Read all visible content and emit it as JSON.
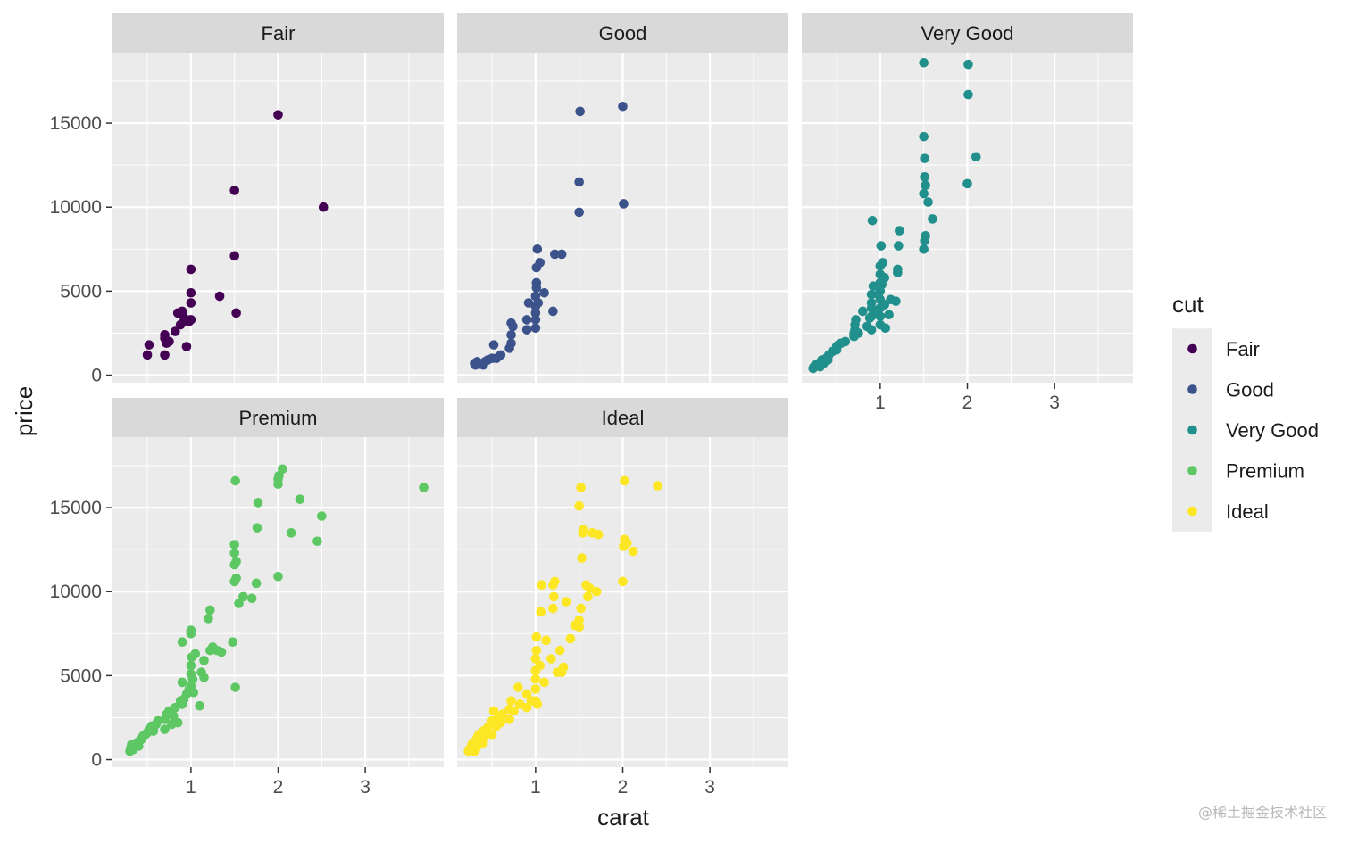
{
  "chart_data": {
    "type": "scatter",
    "xlabel": "carat",
    "ylabel": "price",
    "xlim": [
      0.1,
      3.9
    ],
    "ylim": [
      -450,
      19200
    ],
    "x_ticks": [
      1,
      2,
      3
    ],
    "y_ticks": [
      0,
      5000,
      10000,
      15000
    ],
    "grid": true,
    "legend": {
      "title": "cut",
      "position": "right"
    },
    "colors": {
      "Fair": "#440154",
      "Good": "#3B528B",
      "Very Good": "#21908C",
      "Premium": "#5DC863",
      "Ideal": "#FDE725",
      "panel_bg": "#EBEBEB",
      "strip_bg": "#D9D9D9"
    },
    "series": [
      {
        "name": "Fair",
        "points": [
          [
            0.5,
            1200
          ],
          [
            0.52,
            1800
          ],
          [
            0.7,
            1200
          ],
          [
            0.7,
            2200
          ],
          [
            0.7,
            2400
          ],
          [
            0.72,
            1900
          ],
          [
            0.75,
            2000
          ],
          [
            0.82,
            2600
          ],
          [
            0.85,
            3700
          ],
          [
            0.88,
            3000
          ],
          [
            0.9,
            3600
          ],
          [
            0.9,
            3800
          ],
          [
            0.92,
            3200
          ],
          [
            0.95,
            1700
          ],
          [
            0.95,
            3300
          ],
          [
            0.98,
            3200
          ],
          [
            1.0,
            3300
          ],
          [
            1.0,
            4300
          ],
          [
            1.0,
            4900
          ],
          [
            1.0,
            6300
          ],
          [
            1.33,
            4700
          ],
          [
            1.5,
            7100
          ],
          [
            1.5,
            11000
          ],
          [
            1.52,
            3700
          ],
          [
            2.0,
            15500
          ],
          [
            2.52,
            10000
          ]
        ]
      },
      {
        "name": "Good",
        "points": [
          [
            0.3,
            700
          ],
          [
            0.31,
            600
          ],
          [
            0.33,
            800
          ],
          [
            0.36,
            650
          ],
          [
            0.4,
            600
          ],
          [
            0.42,
            800
          ],
          [
            0.45,
            900
          ],
          [
            0.5,
            1000
          ],
          [
            0.52,
            1800
          ],
          [
            0.55,
            1000
          ],
          [
            0.6,
            1200
          ],
          [
            0.7,
            1600
          ],
          [
            0.72,
            1900
          ],
          [
            0.72,
            2400
          ],
          [
            0.72,
            3100
          ],
          [
            0.74,
            2900
          ],
          [
            0.9,
            2700
          ],
          [
            0.9,
            3300
          ],
          [
            0.92,
            4300
          ],
          [
            1.0,
            2800
          ],
          [
            1.0,
            3300
          ],
          [
            1.0,
            3700
          ],
          [
            1.0,
            4100
          ],
          [
            1.0,
            4700
          ],
          [
            1.01,
            5200
          ],
          [
            1.01,
            5500
          ],
          [
            1.01,
            6400
          ],
          [
            1.02,
            7500
          ],
          [
            1.03,
            4300
          ],
          [
            1.05,
            6700
          ],
          [
            1.1,
            4900
          ],
          [
            1.2,
            3800
          ],
          [
            1.22,
            7200
          ],
          [
            1.3,
            7200
          ],
          [
            1.5,
            9700
          ],
          [
            1.5,
            11500
          ],
          [
            1.51,
            15700
          ],
          [
            2.0,
            16000
          ],
          [
            2.01,
            10200
          ]
        ]
      },
      {
        "name": "Very Good",
        "points": [
          [
            0.23,
            400
          ],
          [
            0.24,
            500
          ],
          [
            0.26,
            600
          ],
          [
            0.28,
            650
          ],
          [
            0.3,
            700
          ],
          [
            0.31,
            500
          ],
          [
            0.32,
            800
          ],
          [
            0.33,
            900
          ],
          [
            0.35,
            700
          ],
          [
            0.38,
            1000
          ],
          [
            0.4,
            900
          ],
          [
            0.4,
            1100
          ],
          [
            0.41,
            1200
          ],
          [
            0.45,
            1400
          ],
          [
            0.5,
            1500
          ],
          [
            0.5,
            1700
          ],
          [
            0.52,
            1800
          ],
          [
            0.55,
            1900
          ],
          [
            0.6,
            2000
          ],
          [
            0.7,
            2300
          ],
          [
            0.7,
            2500
          ],
          [
            0.71,
            2700
          ],
          [
            0.71,
            3000
          ],
          [
            0.72,
            3300
          ],
          [
            0.75,
            2500
          ],
          [
            0.8,
            3800
          ],
          [
            0.85,
            2900
          ],
          [
            0.88,
            3400
          ],
          [
            0.9,
            2700
          ],
          [
            0.9,
            3500
          ],
          [
            0.9,
            4000
          ],
          [
            0.9,
            4300
          ],
          [
            0.9,
            4800
          ],
          [
            0.91,
            9200
          ],
          [
            0.92,
            5300
          ],
          [
            0.95,
            3700
          ],
          [
            0.98,
            4800
          ],
          [
            1.0,
            3000
          ],
          [
            1.0,
            3500
          ],
          [
            1.0,
            4000
          ],
          [
            1.0,
            4500
          ],
          [
            1.0,
            5000
          ],
          [
            1.0,
            5500
          ],
          [
            1.0,
            6000
          ],
          [
            1.0,
            6500
          ],
          [
            1.01,
            7700
          ],
          [
            1.02,
            5400
          ],
          [
            1.03,
            6700
          ],
          [
            1.05,
            4200
          ],
          [
            1.05,
            5800
          ],
          [
            1.06,
            2800
          ],
          [
            1.1,
            3600
          ],
          [
            1.12,
            4500
          ],
          [
            1.18,
            4400
          ],
          [
            1.2,
            6100
          ],
          [
            1.2,
            6300
          ],
          [
            1.21,
            7700
          ],
          [
            1.22,
            8600
          ],
          [
            1.5,
            7500
          ],
          [
            1.51,
            8000
          ],
          [
            1.52,
            8300
          ],
          [
            1.5,
            10800
          ],
          [
            1.52,
            11300
          ],
          [
            1.51,
            11800
          ],
          [
            1.51,
            12900
          ],
          [
            1.5,
            14200
          ],
          [
            1.55,
            10300
          ],
          [
            1.6,
            9300
          ],
          [
            1.5,
            18600
          ],
          [
            2.0,
            11400
          ],
          [
            2.01,
            16700
          ],
          [
            2.01,
            18500
          ],
          [
            2.1,
            13000
          ]
        ]
      },
      {
        "name": "Premium",
        "points": [
          [
            0.3,
            500
          ],
          [
            0.31,
            700
          ],
          [
            0.32,
            900
          ],
          [
            0.34,
            600
          ],
          [
            0.36,
            800
          ],
          [
            0.38,
            1000
          ],
          [
            0.4,
            800
          ],
          [
            0.41,
            1100
          ],
          [
            0.43,
            1200
          ],
          [
            0.45,
            1400
          ],
          [
            0.48,
            1500
          ],
          [
            0.5,
            1600
          ],
          [
            0.52,
            1800
          ],
          [
            0.55,
            2000
          ],
          [
            0.57,
            1700
          ],
          [
            0.6,
            2100
          ],
          [
            0.62,
            2300
          ],
          [
            0.7,
            1800
          ],
          [
            0.7,
            2400
          ],
          [
            0.72,
            2700
          ],
          [
            0.75,
            2900
          ],
          [
            0.78,
            2100
          ],
          [
            0.8,
            2600
          ],
          [
            0.82,
            3100
          ],
          [
            0.85,
            2200
          ],
          [
            0.88,
            3500
          ],
          [
            0.9,
            3300
          ],
          [
            0.9,
            4600
          ],
          [
            0.9,
            7000
          ],
          [
            0.92,
            3600
          ],
          [
            0.95,
            3900
          ],
          [
            0.98,
            4200
          ],
          [
            1.0,
            4400
          ],
          [
            1.0,
            5100
          ],
          [
            1.0,
            5600
          ],
          [
            1.0,
            7500
          ],
          [
            1.0,
            7700
          ],
          [
            1.01,
            6100
          ],
          [
            1.02,
            4800
          ],
          [
            1.03,
            4000
          ],
          [
            1.05,
            6300
          ],
          [
            1.1,
            3200
          ],
          [
            1.12,
            5200
          ],
          [
            1.15,
            4900
          ],
          [
            1.15,
            5900
          ],
          [
            1.2,
            8400
          ],
          [
            1.22,
            8900
          ],
          [
            1.22,
            6500
          ],
          [
            1.25,
            6700
          ],
          [
            1.3,
            6500
          ],
          [
            1.35,
            6400
          ],
          [
            1.48,
            7000
          ],
          [
            1.51,
            4300
          ],
          [
            1.5,
            10600
          ],
          [
            1.52,
            10800
          ],
          [
            1.5,
            11600
          ],
          [
            1.52,
            11800
          ],
          [
            1.5,
            12300
          ],
          [
            1.5,
            12800
          ],
          [
            1.51,
            16600
          ],
          [
            1.55,
            9300
          ],
          [
            1.6,
            9700
          ],
          [
            1.7,
            9600
          ],
          [
            1.75,
            10500
          ],
          [
            1.76,
            13800
          ],
          [
            1.77,
            15300
          ],
          [
            2.0,
            10900
          ],
          [
            2.0,
            16400
          ],
          [
            2.0,
            16700
          ],
          [
            2.01,
            16900
          ],
          [
            2.05,
            17300
          ],
          [
            2.15,
            13500
          ],
          [
            2.25,
            15500
          ],
          [
            2.45,
            13000
          ],
          [
            2.5,
            14500
          ],
          [
            3.67,
            16200
          ]
        ]
      },
      {
        "name": "Ideal",
        "points": [
          [
            0.23,
            500
          ],
          [
            0.24,
            600
          ],
          [
            0.26,
            700
          ],
          [
            0.27,
            900
          ],
          [
            0.28,
            1000
          ],
          [
            0.3,
            500
          ],
          [
            0.3,
            800
          ],
          [
            0.31,
            1100
          ],
          [
            0.32,
            700
          ],
          [
            0.33,
            1300
          ],
          [
            0.34,
            900
          ],
          [
            0.35,
            1500
          ],
          [
            0.38,
            1200
          ],
          [
            0.4,
            1000
          ],
          [
            0.4,
            1700
          ],
          [
            0.42,
            1400
          ],
          [
            0.45,
            1900
          ],
          [
            0.5,
            1500
          ],
          [
            0.5,
            2300
          ],
          [
            0.52,
            2900
          ],
          [
            0.55,
            2000
          ],
          [
            0.57,
            2500
          ],
          [
            0.6,
            2200
          ],
          [
            0.62,
            2700
          ],
          [
            0.7,
            2400
          ],
          [
            0.7,
            3000
          ],
          [
            0.72,
            3500
          ],
          [
            0.75,
            2900
          ],
          [
            0.8,
            4300
          ],
          [
            0.82,
            3300
          ],
          [
            0.9,
            3100
          ],
          [
            0.9,
            3900
          ],
          [
            0.95,
            3500
          ],
          [
            1.0,
            3500
          ],
          [
            1.0,
            4200
          ],
          [
            1.0,
            4800
          ],
          [
            1.0,
            5300
          ],
          [
            1.0,
            6000
          ],
          [
            1.01,
            6500
          ],
          [
            1.01,
            7300
          ],
          [
            1.02,
            3300
          ],
          [
            1.05,
            5600
          ],
          [
            1.06,
            8800
          ],
          [
            1.07,
            10400
          ],
          [
            1.1,
            4600
          ],
          [
            1.12,
            7100
          ],
          [
            1.18,
            6000
          ],
          [
            1.2,
            9000
          ],
          [
            1.21,
            9700
          ],
          [
            1.2,
            10400
          ],
          [
            1.22,
            10600
          ],
          [
            1.25,
            5200
          ],
          [
            1.28,
            6500
          ],
          [
            1.3,
            5200
          ],
          [
            1.32,
            5500
          ],
          [
            1.35,
            9400
          ],
          [
            1.4,
            7200
          ],
          [
            1.45,
            8000
          ],
          [
            1.5,
            7900
          ],
          [
            1.5,
            8300
          ],
          [
            1.52,
            9000
          ],
          [
            1.53,
            12000
          ],
          [
            1.54,
            13500
          ],
          [
            1.5,
            15100
          ],
          [
            1.52,
            16200
          ],
          [
            1.55,
            13700
          ],
          [
            1.58,
            10400
          ],
          [
            1.6,
            9700
          ],
          [
            1.62,
            10200
          ],
          [
            1.65,
            13500
          ],
          [
            1.7,
            10000
          ],
          [
            1.72,
            13400
          ],
          [
            2.0,
            10600
          ],
          [
            2.01,
            12700
          ],
          [
            2.02,
            13100
          ],
          [
            2.05,
            12900
          ],
          [
            2.02,
            16600
          ],
          [
            2.12,
            12400
          ],
          [
            2.4,
            16300
          ]
        ]
      }
    ]
  },
  "watermark": "@稀土掘金技术社区"
}
